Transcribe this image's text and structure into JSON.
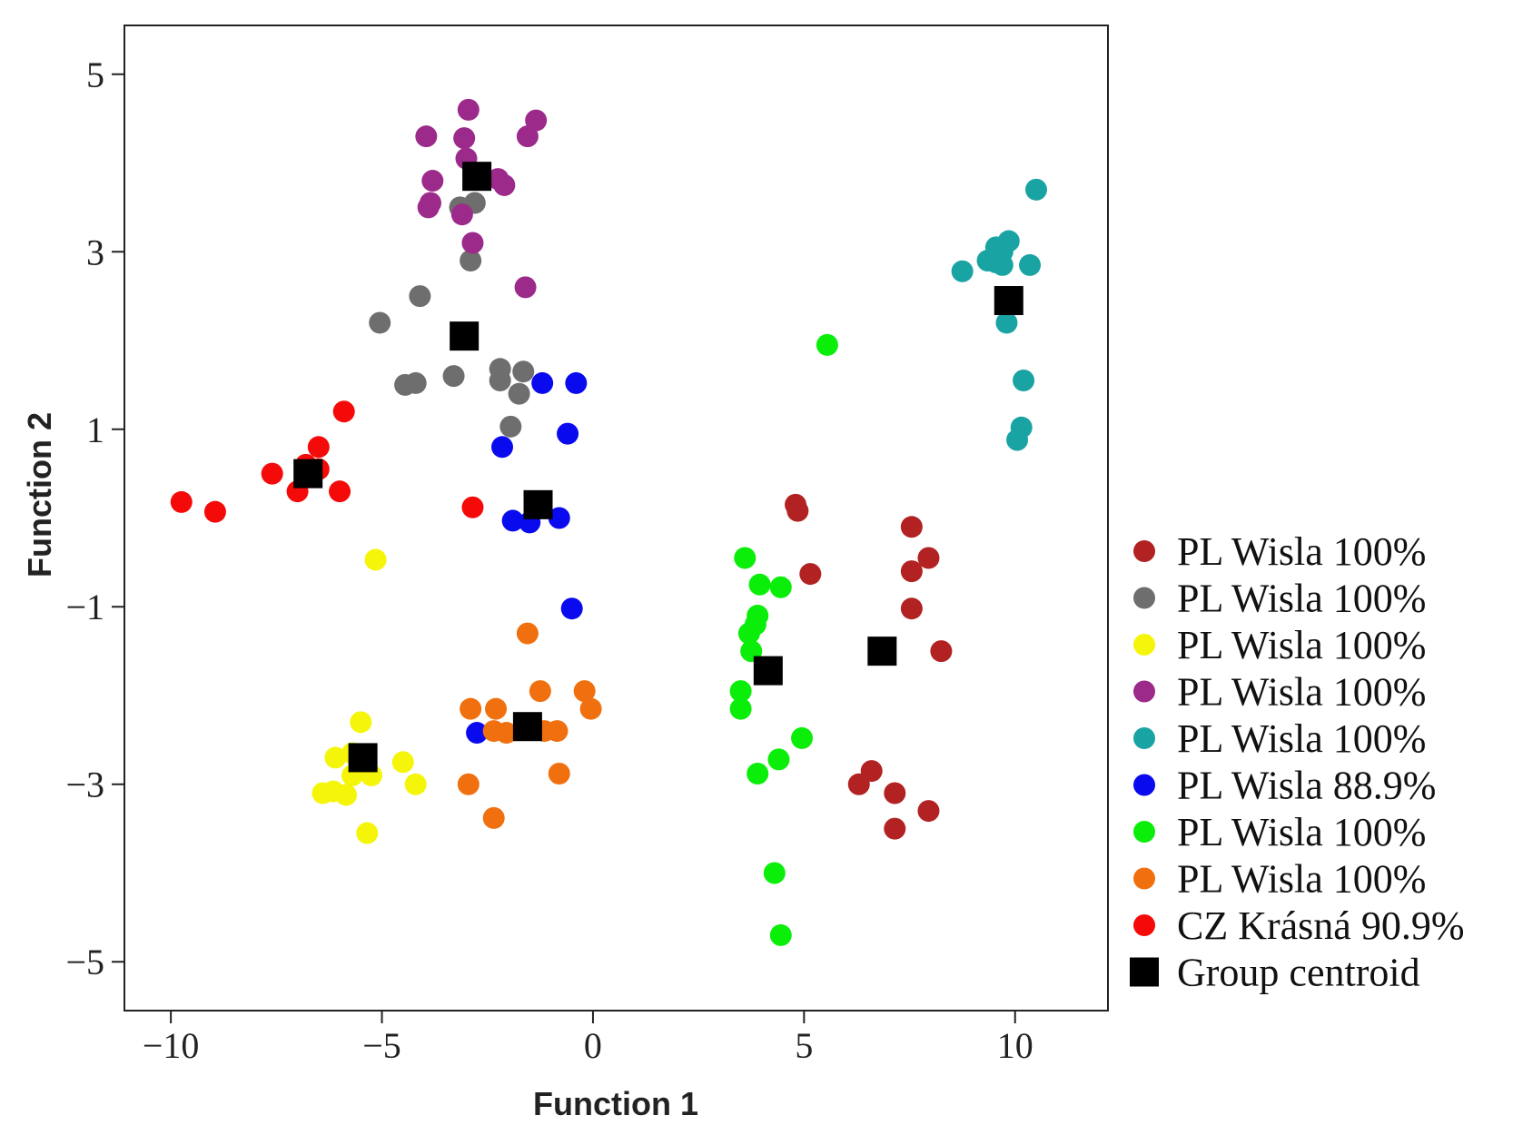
{
  "chart_data": {
    "type": "scatter",
    "title": "",
    "xlabel": "Function 1",
    "ylabel": "Function 2",
    "xlim": [
      -11.1,
      12.2
    ],
    "ylim": [
      -5.55,
      5.55
    ],
    "xticks": [
      -10,
      -5,
      0,
      5,
      10
    ],
    "yticks": [
      5,
      3,
      1,
      -1,
      -3,
      -5
    ],
    "xtick_labels": [
      "−10",
      "−5",
      "0",
      "5",
      "10"
    ],
    "ytick_labels": [
      "5",
      "3",
      "1",
      "−1",
      "−3",
      "−5"
    ],
    "grid": false,
    "legend_position": "right",
    "series": [
      {
        "name": "PL Wisla 100%",
        "color": "#b22222",
        "points": [
          [
            4.8,
            0.15
          ],
          [
            4.85,
            0.08
          ],
          [
            5.15,
            -0.63
          ],
          [
            7.55,
            -0.1
          ],
          [
            7.95,
            -0.45
          ],
          [
            7.55,
            -0.6
          ],
          [
            7.55,
            -1.02
          ],
          [
            8.25,
            -1.5
          ],
          [
            6.3,
            -3.0
          ],
          [
            6.6,
            -2.85
          ],
          [
            7.15,
            -3.1
          ],
          [
            7.95,
            -3.3
          ],
          [
            7.15,
            -3.5
          ]
        ],
        "centroid": [
          6.85,
          -1.5
        ]
      },
      {
        "name": "PL Wisla 100%",
        "color": "#6e6e6e",
        "points": [
          [
            -2.8,
            3.55
          ],
          [
            -3.15,
            3.5
          ],
          [
            -2.9,
            2.9
          ],
          [
            -4.1,
            2.5
          ],
          [
            -5.05,
            2.2
          ],
          [
            -4.45,
            1.5
          ],
          [
            -4.2,
            1.52
          ],
          [
            -3.3,
            1.6
          ],
          [
            -2.2,
            1.68
          ],
          [
            -2.2,
            1.55
          ],
          [
            -1.65,
            1.65
          ],
          [
            -1.75,
            1.4
          ],
          [
            -1.95,
            1.03
          ]
        ],
        "centroid": [
          -3.05,
          2.05
        ]
      },
      {
        "name": "PL Wisla 100%",
        "color": "#f5f50a",
        "points": [
          [
            -5.15,
            -0.47
          ],
          [
            -5.5,
            -2.3
          ],
          [
            -6.1,
            -2.7
          ],
          [
            -5.7,
            -2.65
          ],
          [
            -5.25,
            -2.9
          ],
          [
            -5.7,
            -2.9
          ],
          [
            -4.5,
            -2.75
          ],
          [
            -4.2,
            -3.0
          ],
          [
            -6.4,
            -3.1
          ],
          [
            -6.15,
            -3.08
          ],
          [
            -5.85,
            -3.12
          ],
          [
            -5.35,
            -3.55
          ]
        ],
        "centroid": [
          -5.45,
          -2.7
        ]
      },
      {
        "name": "PL Wisla 100%",
        "color": "#9b2a8a",
        "points": [
          [
            -2.95,
            4.6
          ],
          [
            -3.95,
            4.3
          ],
          [
            -3.05,
            4.28
          ],
          [
            -1.35,
            4.48
          ],
          [
            -1.55,
            4.3
          ],
          [
            -3.0,
            4.05
          ],
          [
            -3.8,
            3.8
          ],
          [
            -2.25,
            3.82
          ],
          [
            -2.1,
            3.75
          ],
          [
            -3.85,
            3.55
          ],
          [
            -3.9,
            3.5
          ],
          [
            -3.1,
            3.42
          ],
          [
            -2.85,
            3.1
          ],
          [
            -1.6,
            2.6
          ]
        ],
        "centroid": [
          -2.75,
          3.85
        ]
      },
      {
        "name": "PL Wisla 100%",
        "color": "#1aa3a3",
        "points": [
          [
            10.5,
            3.7
          ],
          [
            9.85,
            3.12
          ],
          [
            9.55,
            3.05
          ],
          [
            9.7,
            3.0
          ],
          [
            9.35,
            2.9
          ],
          [
            9.55,
            2.88
          ],
          [
            9.7,
            2.85
          ],
          [
            10.35,
            2.85
          ],
          [
            8.75,
            2.78
          ],
          [
            9.8,
            2.2
          ],
          [
            10.2,
            1.55
          ],
          [
            10.15,
            1.02
          ],
          [
            10.05,
            0.88
          ]
        ],
        "centroid": [
          9.85,
          2.45
        ]
      },
      {
        "name": "PL Wisla 88.9%",
        "color": "#0a0aee",
        "points": [
          [
            -1.2,
            1.52
          ],
          [
            -0.4,
            1.52
          ],
          [
            -0.6,
            0.95
          ],
          [
            -2.15,
            0.8
          ],
          [
            -1.9,
            -0.03
          ],
          [
            -1.5,
            -0.05
          ],
          [
            -0.8,
            0.0
          ],
          [
            -0.5,
            -1.02
          ],
          [
            -2.75,
            -2.42
          ]
        ],
        "centroid": [
          -1.3,
          0.15
        ]
      },
      {
        "name": "PL Wisla 100%",
        "color": "#0aee0a",
        "points": [
          [
            5.55,
            1.95
          ],
          [
            3.6,
            -0.45
          ],
          [
            3.95,
            -0.75
          ],
          [
            4.45,
            -0.78
          ],
          [
            3.9,
            -1.1
          ],
          [
            3.85,
            -1.2
          ],
          [
            3.7,
            -1.3
          ],
          [
            3.75,
            -1.5
          ],
          [
            3.5,
            -1.95
          ],
          [
            3.5,
            -2.15
          ],
          [
            4.95,
            -2.48
          ],
          [
            4.4,
            -2.72
          ],
          [
            3.9,
            -2.88
          ],
          [
            4.3,
            -4.0
          ],
          [
            4.45,
            -4.7
          ]
        ],
        "centroid": [
          4.15,
          -1.72
        ]
      },
      {
        "name": "PL Wisla 100%",
        "color": "#f07010",
        "points": [
          [
            -1.55,
            -1.3
          ],
          [
            -2.9,
            -2.15
          ],
          [
            -2.3,
            -2.15
          ],
          [
            -1.25,
            -1.95
          ],
          [
            -0.2,
            -1.95
          ],
          [
            -0.05,
            -2.15
          ],
          [
            -2.35,
            -2.4
          ],
          [
            -2.05,
            -2.42
          ],
          [
            -1.15,
            -2.4
          ],
          [
            -0.85,
            -2.4
          ],
          [
            -2.95,
            -3.0
          ],
          [
            -0.8,
            -2.88
          ],
          [
            -2.35,
            -3.38
          ]
        ],
        "centroid": [
          -1.55,
          -2.35
        ]
      },
      {
        "name": "CZ Krásná 90.9%",
        "color": "#f50a0a",
        "points": [
          [
            -5.9,
            1.2
          ],
          [
            -6.5,
            0.8
          ],
          [
            -6.8,
            0.6
          ],
          [
            -6.5,
            0.55
          ],
          [
            -7.6,
            0.5
          ],
          [
            -7.0,
            0.3
          ],
          [
            -6.0,
            0.3
          ],
          [
            -9.75,
            0.18
          ],
          [
            -8.95,
            0.07
          ],
          [
            -2.85,
            0.12
          ]
        ],
        "centroid": [
          -6.75,
          0.5
        ]
      }
    ],
    "centroid_label": "Group centroid",
    "centroid_color": "#000000"
  }
}
